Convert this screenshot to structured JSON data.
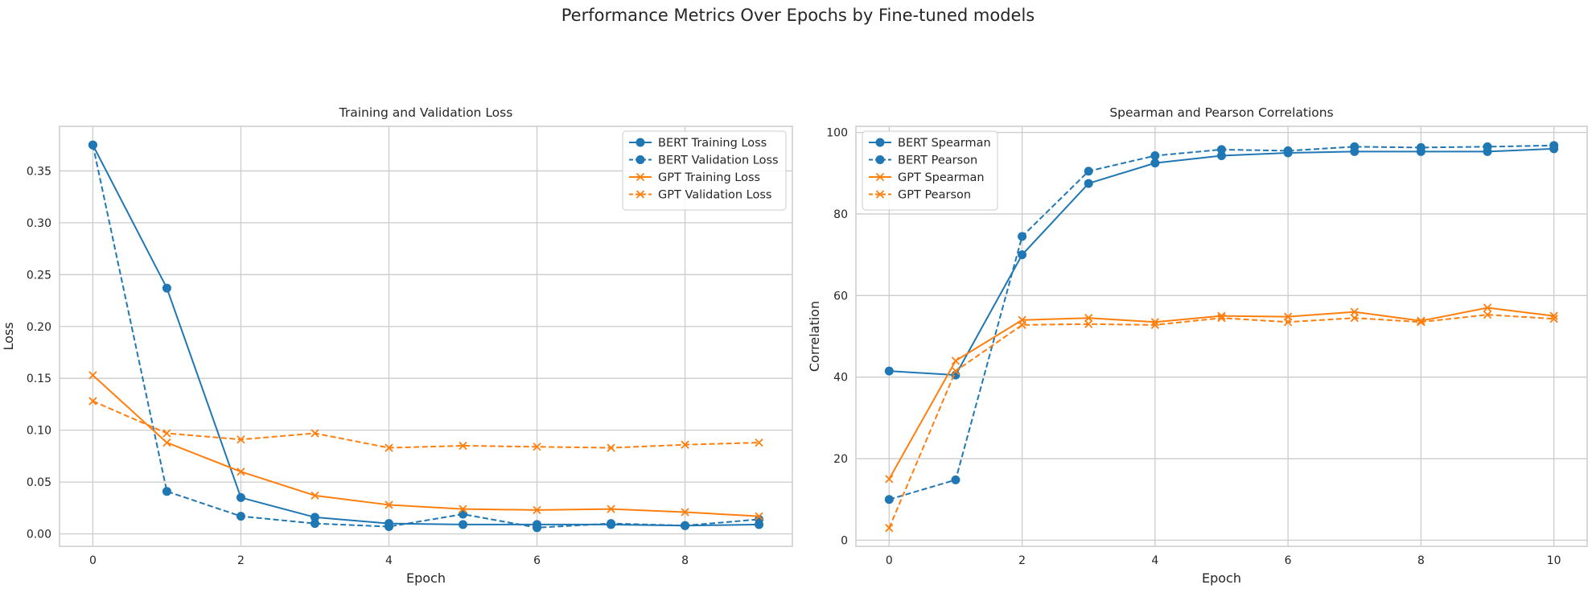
{
  "figure": {
    "title": "Performance Metrics Over Epochs by Fine-tuned models"
  },
  "chart_data": [
    {
      "type": "line",
      "title": "Training and Validation Loss",
      "xlabel": "Epoch",
      "ylabel": "Loss",
      "xlim": [
        -0.45,
        9.45
      ],
      "ylim": [
        -0.012,
        0.393
      ],
      "xticks": [
        0,
        2,
        4,
        6,
        8
      ],
      "yticks": [
        0.0,
        0.05,
        0.1,
        0.15,
        0.2,
        0.25,
        0.3,
        0.35
      ],
      "grid": true,
      "legend_position": "top-right",
      "x": [
        0,
        1,
        2,
        3,
        4,
        5,
        6,
        7,
        8,
        9
      ],
      "series": [
        {
          "name": "BERT Training Loss",
          "color": "#1f77b4",
          "marker": "circle",
          "linestyle": "solid",
          "values": [
            0.375,
            0.237,
            0.035,
            0.016,
            0.01,
            0.009,
            0.009,
            0.009,
            0.008,
            0.009
          ]
        },
        {
          "name": "BERT Validation Loss",
          "color": "#1f77b4",
          "marker": "circle",
          "linestyle": "dashed",
          "values": [
            0.375,
            0.041,
            0.017,
            0.01,
            0.007,
            0.019,
            0.006,
            0.01,
            0.008,
            0.014
          ]
        },
        {
          "name": "GPT Training Loss",
          "color": "#ff7f0e",
          "marker": "x",
          "linestyle": "solid",
          "values": [
            0.153,
            0.088,
            0.06,
            0.037,
            0.028,
            0.024,
            0.023,
            0.024,
            0.021,
            0.017
          ]
        },
        {
          "name": "GPT Validation Loss",
          "color": "#ff7f0e",
          "marker": "x",
          "linestyle": "dashed",
          "values": [
            0.128,
            0.097,
            0.091,
            0.097,
            0.083,
            0.085,
            0.084,
            0.083,
            0.086,
            0.088
          ]
        }
      ]
    },
    {
      "type": "line",
      "title": "Spearman and Pearson Correlations",
      "xlabel": "Epoch",
      "ylabel": "Correlation",
      "xlim": [
        -0.5,
        10.5
      ],
      "ylim": [
        -1.5,
        101.5
      ],
      "xticks": [
        0,
        2,
        4,
        6,
        8,
        10
      ],
      "yticks": [
        0,
        20,
        40,
        60,
        80,
        100
      ],
      "grid": true,
      "legend_position": "top-left",
      "x": [
        0,
        1,
        2,
        3,
        4,
        5,
        6,
        7,
        8,
        9,
        10
      ],
      "series": [
        {
          "name": "BERT Spearman",
          "color": "#1f77b4",
          "marker": "circle",
          "linestyle": "solid",
          "values": [
            41.5,
            40.5,
            70.0,
            87.5,
            92.5,
            94.3,
            95.0,
            95.3,
            95.3,
            95.3,
            96.0
          ]
        },
        {
          "name": "BERT Pearson",
          "color": "#1f77b4",
          "marker": "circle",
          "linestyle": "dashed",
          "values": [
            10.0,
            14.8,
            74.5,
            90.5,
            94.3,
            95.8,
            95.5,
            96.5,
            96.3,
            96.5,
            96.8
          ]
        },
        {
          "name": "GPT Spearman",
          "color": "#ff7f0e",
          "marker": "x",
          "linestyle": "solid",
          "values": [
            15.0,
            44.0,
            54.0,
            54.5,
            53.5,
            55.0,
            54.8,
            56.0,
            53.8,
            57.0,
            55.0
          ]
        },
        {
          "name": "GPT Pearson",
          "color": "#ff7f0e",
          "marker": "x",
          "linestyle": "dashed",
          "values": [
            3.0,
            41.5,
            52.8,
            53.0,
            52.8,
            54.5,
            53.5,
            54.5,
            53.5,
            55.3,
            54.3
          ]
        }
      ]
    }
  ]
}
